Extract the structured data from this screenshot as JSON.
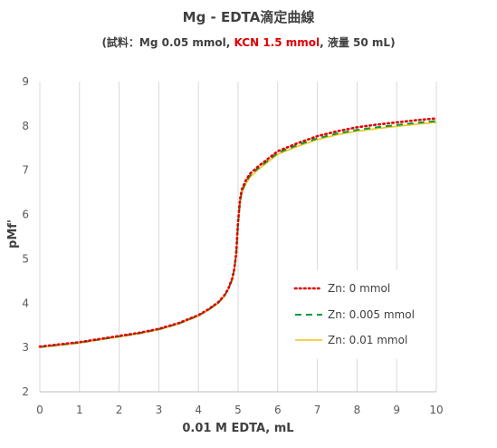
{
  "chart_data": {
    "type": "line",
    "title": "Mg - EDTA滴定曲線",
    "subtitle": {
      "prefix": "(試料：Mg 0.05 mmol, ",
      "highlight": "KCN 1.5 mmol",
      "suffix": ", 液量 50 mL)"
    },
    "xlabel": "0.01 M EDTA, mL",
    "ylabel": "pMf'",
    "xlim": [
      0,
      10
    ],
    "ylim": [
      2,
      9
    ],
    "x_ticks": [
      "0",
      "1",
      "2",
      "3",
      "4",
      "5",
      "6",
      "7",
      "8",
      "9",
      "10"
    ],
    "y_ticks": [
      "2",
      "3",
      "4",
      "5",
      "6",
      "7",
      "8",
      "9"
    ],
    "grid": "vertical",
    "legend_position": "bottom-right",
    "colors": {
      "series_red": "#e00000",
      "series_green": "#0a9b3c",
      "series_yellow": "#f2c318",
      "grid": "#d9d9d9",
      "text": "#404040"
    },
    "x": [
      0,
      0.5,
      1,
      1.5,
      2,
      2.5,
      3,
      3.5,
      4,
      4.25,
      4.5,
      4.65,
      4.75,
      4.85,
      4.9,
      4.95,
      5,
      5.05,
      5.1,
      5.2,
      5.3,
      5.5,
      6,
      6.5,
      7,
      7.5,
      8,
      8.5,
      9,
      9.5,
      10
    ],
    "series": [
      {
        "name": "Zn:  0 mmol",
        "style": "dotted",
        "values": [
          3.02,
          3.07,
          3.12,
          3.19,
          3.26,
          3.33,
          3.42,
          3.55,
          3.73,
          3.86,
          4.02,
          4.17,
          4.32,
          4.55,
          4.75,
          5.1,
          5.85,
          6.35,
          6.58,
          6.78,
          6.92,
          7.08,
          7.43,
          7.61,
          7.77,
          7.88,
          7.97,
          8.03,
          8.08,
          8.13,
          8.17
        ]
      },
      {
        "name": "Zn:  0.005 mmol",
        "style": "dashed",
        "values": [
          3.01,
          3.06,
          3.11,
          3.18,
          3.25,
          3.32,
          3.41,
          3.54,
          3.72,
          3.85,
          4.01,
          4.16,
          4.31,
          4.54,
          4.74,
          5.08,
          5.8,
          6.3,
          6.54,
          6.74,
          6.88,
          7.04,
          7.39,
          7.57,
          7.72,
          7.83,
          7.91,
          7.97,
          8.02,
          8.07,
          8.11
        ]
      },
      {
        "name": "Zn:  0.01 mmol",
        "style": "solid",
        "values": [
          3.0,
          3.05,
          3.1,
          3.17,
          3.24,
          3.31,
          3.4,
          3.53,
          3.71,
          3.84,
          4.0,
          4.15,
          4.3,
          4.52,
          4.72,
          5.05,
          5.75,
          6.25,
          6.5,
          6.7,
          6.84,
          7.01,
          7.36,
          7.54,
          7.69,
          7.8,
          7.88,
          7.94,
          7.99,
          8.04,
          8.08
        ]
      }
    ]
  }
}
